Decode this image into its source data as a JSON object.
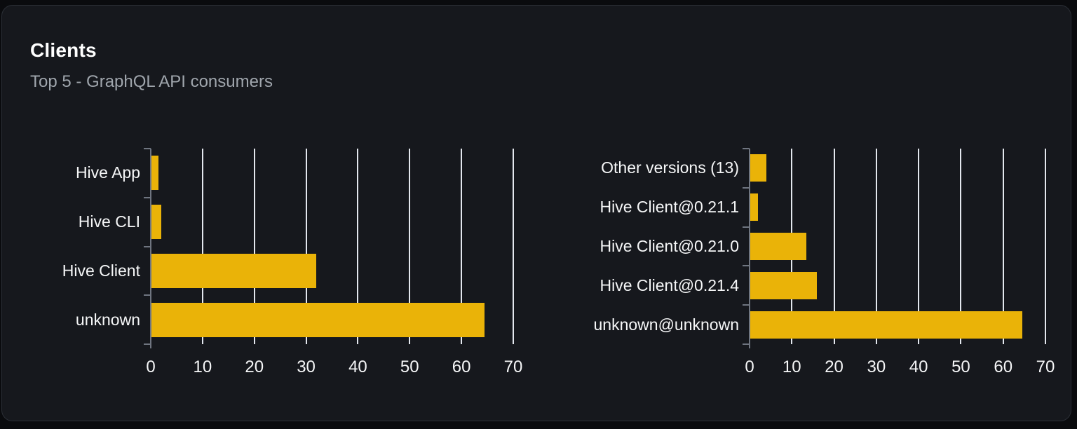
{
  "header": {
    "title": "Clients",
    "subtitle": "Top 5 - GraphQL API consumers"
  },
  "colors": {
    "bar": "#eab308",
    "card_bg": "#16181d",
    "page_bg": "#0a0b0e",
    "gridline": "#e3e7ee",
    "axis": "#6f7580",
    "title_text": "#ffffff",
    "subtitle_text": "#a0a6ad",
    "label_text": "#f6f7f8"
  },
  "chart_data": [
    {
      "name": "clients-by-name",
      "type": "bar",
      "orientation": "horizontal",
      "categories": [
        "Hive App",
        "Hive CLI",
        "Hive Client",
        "unknown"
      ],
      "values": [
        1.5,
        2,
        32,
        64.5
      ],
      "x_ticks": [
        0,
        10,
        20,
        30,
        40,
        50,
        60,
        70
      ],
      "xlim": [
        0,
        70
      ],
      "grid": true,
      "legend": "none",
      "bar_color": "#eab308"
    },
    {
      "name": "clients-by-version",
      "type": "bar",
      "orientation": "horizontal",
      "categories": [
        "Other versions (13)",
        "Hive Client@0.21.1",
        "Hive Client@0.21.0",
        "Hive Client@0.21.4",
        "unknown@unknown"
      ],
      "values": [
        4,
        2,
        13.5,
        16,
        64.5
      ],
      "x_ticks": [
        0,
        10,
        20,
        30,
        40,
        50,
        60,
        70
      ],
      "xlim": [
        0,
        70
      ],
      "grid": true,
      "legend": "none",
      "bar_color": "#eab308"
    }
  ]
}
